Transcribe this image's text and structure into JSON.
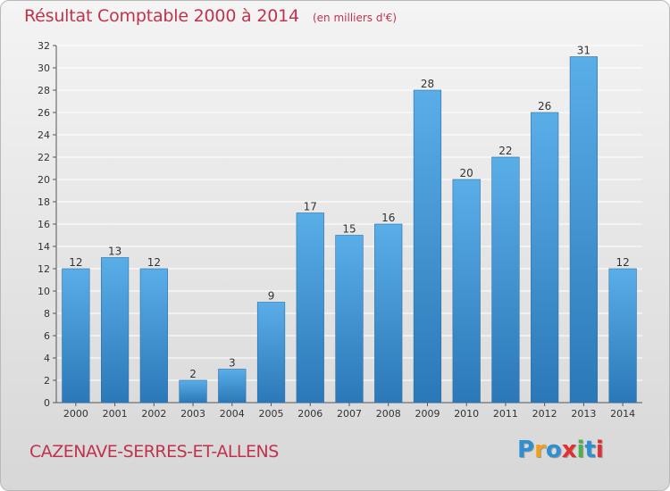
{
  "header": {
    "title": "Résultat Comptable 2000 à 2014",
    "subtitle": "(en milliers d'€)"
  },
  "footer": {
    "place": "CAZENAVE-SERRES-ET-ALLENS",
    "logo_text": "Proxiti"
  },
  "colors": {
    "title": "#c0334d",
    "bar_top": "#5aaee8",
    "bar_bottom": "#2b78b8",
    "grid": "#ffffff",
    "logo": [
      "#2f8fd0",
      "#f0a020",
      "#2f8fd0",
      "#e03030",
      "#50b050",
      "#2f8fd0",
      "#e03030"
    ]
  },
  "chart_data": {
    "type": "bar",
    "title": "Résultat Comptable 2000 à 2014",
    "subtitle": "(en milliers d'€)",
    "categories": [
      "2000",
      "2001",
      "2002",
      "2003",
      "2004",
      "2005",
      "2006",
      "2007",
      "2008",
      "2009",
      "2010",
      "2011",
      "2012",
      "2013",
      "2014"
    ],
    "values": [
      12,
      13,
      12,
      2,
      3,
      9,
      17,
      15,
      16,
      28,
      20,
      22,
      26,
      31,
      12
    ],
    "ylim": [
      0,
      32
    ],
    "yticks": [
      0,
      2,
      4,
      6,
      8,
      10,
      12,
      14,
      16,
      18,
      20,
      22,
      24,
      26,
      28,
      30,
      32
    ],
    "grid": true,
    "data_labels": true,
    "xlabel": "",
    "ylabel": ""
  }
}
